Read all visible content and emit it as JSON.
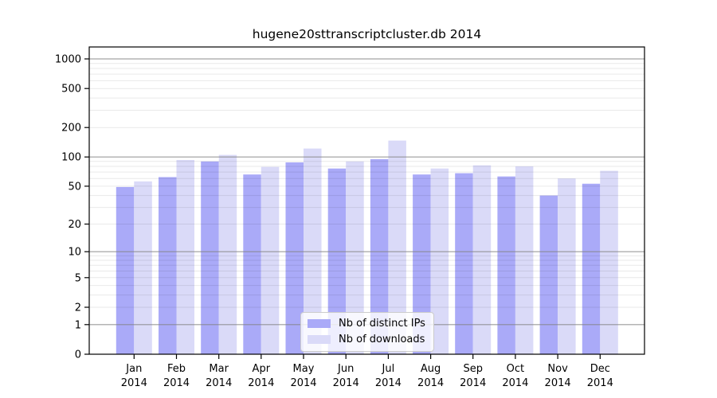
{
  "figure": {
    "background": "#ffffff"
  },
  "chart_data": {
    "type": "bar",
    "title": "hugene20sttranscriptcluster.db 2014",
    "categories": [
      "Jan",
      "Feb",
      "Mar",
      "Apr",
      "May",
      "Jun",
      "Jul",
      "Aug",
      "Sep",
      "Oct",
      "Nov",
      "Dec"
    ],
    "xtick_year": "2014",
    "series": [
      {
        "name": "Nb of distinct IPs",
        "color": "#aaaaf8",
        "values": [
          49,
          62,
          90,
          66,
          88,
          76,
          95,
          66,
          68,
          63,
          40,
          53
        ]
      },
      {
        "name": "Nb of downloads",
        "color": "#dadaf8",
        "values": [
          56,
          93,
          105,
          79,
          122,
          90,
          147,
          76,
          82,
          80,
          60,
          72
        ]
      }
    ],
    "yticks": [
      0,
      1,
      2,
      5,
      10,
      20,
      50,
      100,
      200,
      500,
      1000
    ],
    "y_scale": "log1p",
    "ylim": [
      0,
      1200
    ],
    "grid": true,
    "legend_position": "lower center",
    "colors": {
      "major_gridline": "rgba(130,130,130,0.6)",
      "minor_gridline": "rgba(0,0,0,0.085)",
      "spine": "#000000",
      "tick_label": "#000000"
    }
  }
}
